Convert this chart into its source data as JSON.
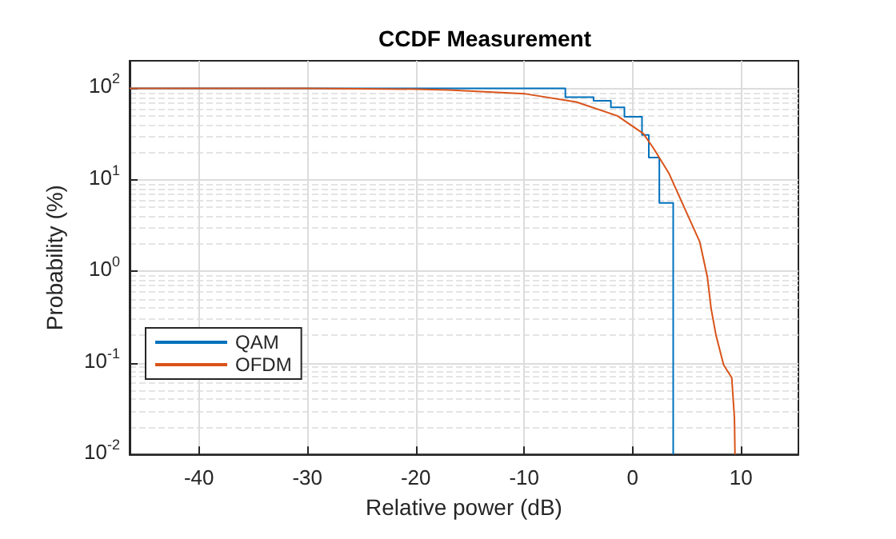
{
  "chart_data": {
    "type": "step",
    "title": "CCDF Measurement",
    "xlabel": "Relative power (dB)",
    "ylabel": "Probability (%)",
    "xlim": [
      -46.4,
      15.3
    ],
    "xticks": [
      -40,
      -30,
      -20,
      -10,
      0,
      10
    ],
    "ylim": [
      0.01,
      200
    ],
    "yticks": [
      {
        "value": 0.01,
        "label": "10$^{-2}$"
      },
      {
        "value": 0.1,
        "label": "10$^{-1}$"
      },
      {
        "value": 1,
        "label": "10$^{0}$"
      },
      {
        "value": 10,
        "label": "10$^{1}$"
      },
      {
        "value": 100,
        "label": "10$^{2}$"
      }
    ],
    "log": "y",
    "grid": true,
    "legend": "bottom left",
    "series": [
      {
        "name": "QAM",
        "color": "#0072bd",
        "x": [
          -46.4,
          -6.2,
          -3.6,
          -2.0,
          -0.75,
          0.87,
          1.5,
          2.47,
          3.75
        ],
        "values": [
          100,
          80,
          73,
          62,
          49,
          31,
          17.5,
          5.6,
          0.01
        ]
      },
      {
        "name": "OFDM",
        "type": "line",
        "color": "#d95319",
        "x": [
          -46.4,
          -30,
          -20,
          -17,
          -9.9,
          -5.2,
          -1.4,
          1.0,
          1.95,
          3.37,
          4.8,
          6.2,
          6.9,
          7.25,
          7.7,
          8.4,
          9.15,
          9.4,
          9.45
        ],
        "values": [
          100,
          99.9,
          98,
          96,
          87,
          71,
          50,
          32,
          22,
          11.7,
          4.9,
          2.1,
          0.87,
          0.39,
          0.2,
          0.095,
          0.069,
          0.025,
          0.01
        ]
      }
    ]
  }
}
